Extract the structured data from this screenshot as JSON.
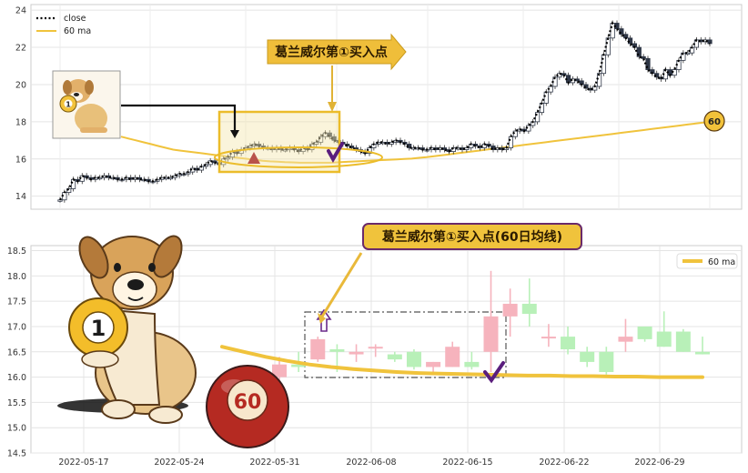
{
  "chart_data": [
    {
      "type": "line",
      "legend": [
        "close",
        "60 ma"
      ],
      "legend_placement": "top-left",
      "grid": true,
      "ylim": [
        13.3,
        24.3
      ],
      "yticks": [
        "14",
        "16",
        "18",
        "20",
        "22",
        "24"
      ],
      "annotation_label": "葛兰威尔第①买入点",
      "ma_end_badge": "60",
      "close": [
        13.8,
        14.2,
        14.4,
        14.9,
        14.8,
        15.1,
        15.0,
        14.9,
        15.0,
        15.0,
        15.1,
        15.0,
        15.0,
        14.9,
        14.9,
        15.0,
        14.9,
        15.0,
        14.9,
        14.9,
        14.8,
        14.8,
        14.9,
        15.0,
        15.0,
        15.0,
        15.1,
        15.2,
        15.2,
        15.3,
        15.5,
        15.4,
        15.6,
        15.7,
        15.9,
        15.8,
        15.7,
        16.0,
        16.1,
        16.4,
        16.3,
        16.5,
        16.6,
        16.7,
        16.8,
        16.7,
        16.6,
        16.6,
        16.5,
        16.6,
        16.5,
        16.5,
        16.6,
        16.5,
        16.4,
        16.6,
        16.5,
        16.8,
        16.9,
        17.2,
        17.4,
        17.2,
        17.0,
        16.9,
        16.8,
        16.7,
        16.6,
        16.5,
        16.4,
        16.3,
        16.6,
        16.8,
        16.9,
        16.9,
        16.8,
        16.9,
        17.0,
        16.9,
        16.8,
        16.6,
        16.6,
        16.6,
        16.5,
        16.5,
        16.6,
        16.5,
        16.6,
        16.5,
        16.4,
        16.6,
        16.6,
        16.5,
        16.6,
        16.8,
        16.7,
        16.6,
        16.8,
        16.7,
        16.5,
        16.6,
        16.5,
        16.6,
        17.2,
        17.5,
        17.6,
        17.5,
        17.8,
        18.0,
        18.5,
        19.0,
        19.6,
        19.9,
        20.4,
        20.6,
        20.5,
        20.1,
        20.3,
        20.2,
        20.0,
        19.8,
        19.7,
        19.9,
        20.6,
        21.6,
        22.5,
        23.3,
        23.0,
        22.7,
        22.5,
        22.2,
        22.0,
        21.5,
        21.4,
        20.8,
        20.6,
        20.4,
        20.3,
        20.8,
        20.5,
        20.8,
        21.3,
        21.7,
        21.7,
        22.0,
        22.4,
        22.3,
        22.4,
        22.2
      ],
      "ma60": [
        17.2,
        17.1,
        17.0,
        16.9,
        16.8,
        16.7,
        16.6,
        16.5,
        16.45,
        16.4,
        16.35,
        16.3,
        16.25,
        16.2,
        16.15,
        16.1,
        16.05,
        16.0,
        15.95,
        15.9,
        15.87,
        15.85,
        15.83,
        15.82,
        15.8,
        15.8,
        15.8,
        15.8,
        15.8,
        15.82,
        15.84,
        15.86,
        15.88,
        15.9,
        15.92,
        15.94,
        15.96,
        15.98,
        16.0,
        16.02,
        16.06,
        16.1,
        16.15,
        16.2,
        16.25,
        16.3,
        16.35,
        16.4,
        16.45,
        16.5,
        16.55,
        16.6,
        16.65,
        16.7,
        16.75,
        16.8,
        16.85,
        16.9,
        16.95,
        17.0,
        17.05,
        17.1,
        17.15,
        17.2,
        17.25,
        17.3,
        17.35,
        17.4,
        17.45,
        17.5,
        17.55,
        17.6,
        17.65,
        17.7,
        17.75,
        17.8,
        17.85,
        17.9,
        17.95,
        18.0
      ]
    },
    {
      "type": "candlestick",
      "legend": [
        "60 ma"
      ],
      "legend_placement": "top-right",
      "grid": true,
      "ylim": [
        14.5,
        18.6
      ],
      "yticks": [
        "14.5",
        "15.0",
        "15.5",
        "16.0",
        "16.5",
        "17.0",
        "17.5",
        "18.0",
        "18.5"
      ],
      "xticks": [
        "2022-05-17",
        "2022-05-24",
        "2022-05-31",
        "2022-06-08",
        "2022-06-15",
        "2022-06-22",
        "2022-06-29"
      ],
      "annotation_label": "葛兰威尔第①买入点(60日均线)",
      "ball_1_label": "1",
      "ball_60_label": "60",
      "candles": [
        {
          "o": 16.0,
          "h": 16.4,
          "l": 15.95,
          "c": 16.25
        },
        {
          "o": 16.25,
          "h": 16.5,
          "l": 16.1,
          "c": 16.2
        },
        {
          "o": 16.35,
          "h": 16.8,
          "l": 16.3,
          "c": 16.75
        },
        {
          "o": 16.55,
          "h": 16.65,
          "l": 16.1,
          "c": 16.5
        },
        {
          "o": 16.45,
          "h": 16.65,
          "l": 16.3,
          "c": 16.5
        },
        {
          "o": 16.6,
          "h": 16.65,
          "l": 16.4,
          "c": 16.6
        },
        {
          "o": 16.45,
          "h": 16.5,
          "l": 16.3,
          "c": 16.35
        },
        {
          "o": 16.5,
          "h": 16.55,
          "l": 16.15,
          "c": 16.2
        },
        {
          "o": 16.2,
          "h": 16.3,
          "l": 16.1,
          "c": 16.3
        },
        {
          "o": 16.2,
          "h": 16.7,
          "l": 16.2,
          "c": 16.6
        },
        {
          "o": 16.3,
          "h": 16.5,
          "l": 16.15,
          "c": 16.2
        },
        {
          "o": 16.5,
          "h": 18.1,
          "l": 16.1,
          "c": 17.2
        },
        {
          "o": 17.2,
          "h": 17.75,
          "l": 16.8,
          "c": 17.45
        },
        {
          "o": 17.45,
          "h": 17.95,
          "l": 17.0,
          "c": 17.25
        },
        {
          "o": 16.8,
          "h": 17.05,
          "l": 16.6,
          "c": 16.8
        },
        {
          "o": 16.8,
          "h": 17.0,
          "l": 16.45,
          "c": 16.55
        },
        {
          "o": 16.5,
          "h": 16.6,
          "l": 16.2,
          "c": 16.3
        },
        {
          "o": 16.5,
          "h": 16.6,
          "l": 16.05,
          "c": 16.1
        },
        {
          "o": 16.7,
          "h": 17.15,
          "l": 16.5,
          "c": 16.8
        },
        {
          "o": 17.0,
          "h": 17.0,
          "l": 16.7,
          "c": 16.75
        },
        {
          "o": 16.9,
          "h": 17.3,
          "l": 16.6,
          "c": 16.6
        },
        {
          "o": 16.9,
          "h": 16.95,
          "l": 16.5,
          "c": 16.5
        },
        {
          "o": 16.5,
          "h": 16.8,
          "l": 16.45,
          "c": 16.45
        }
      ],
      "ma60": [
        16.6,
        16.5,
        16.4,
        16.32,
        16.25,
        16.2,
        16.16,
        16.13,
        16.1,
        16.08,
        16.07,
        16.06,
        16.05,
        16.04,
        16.03,
        16.03,
        16.02,
        16.02,
        16.01,
        16.01,
        16.0,
        16.0,
        16.0
      ]
    }
  ]
}
